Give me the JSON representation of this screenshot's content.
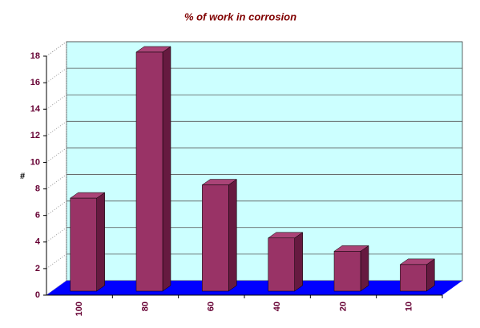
{
  "chart_data": {
    "type": "bar3d",
    "title": "% of work in corrosion",
    "y_label": "#",
    "categories": [
      "100",
      "80",
      "60",
      "40",
      "20",
      "10"
    ],
    "values": [
      7,
      18,
      8,
      4,
      3,
      2
    ],
    "color": "#993366",
    "wall_color": "#ccffff",
    "floor_color": "#0000ff",
    "ylim": [
      0,
      18
    ],
    "yticks": [
      0,
      2,
      4,
      6,
      8,
      10,
      12,
      14,
      16,
      18
    ],
    "grid": true
  }
}
